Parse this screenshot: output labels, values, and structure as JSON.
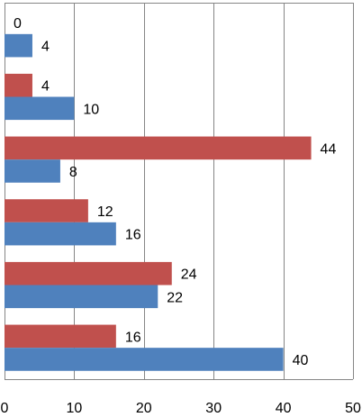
{
  "chart_data": {
    "type": "bar",
    "orientation": "horizontal",
    "categories": [
      "",
      "",
      "",
      "",
      "",
      ""
    ],
    "series": [
      {
        "values": [
          0,
          4,
          44,
          12,
          24,
          16
        ],
        "color": "#c0504d"
      },
      {
        "values": [
          4,
          10,
          8,
          16,
          22,
          40
        ],
        "color": "#4f81bd"
      }
    ],
    "xlim": [
      0,
      50
    ],
    "xticks": [
      0,
      10,
      20,
      30,
      40,
      50
    ],
    "xtick_labels": [
      "0",
      "10",
      "20",
      "30",
      "40",
      "50"
    ],
    "data_labels": {
      "red": [
        "0",
        "4",
        "44",
        "12",
        "24",
        "16"
      ],
      "blue": [
        "4",
        "10",
        "8",
        "16",
        "22",
        "40"
      ]
    },
    "grid": "vertical",
    "legend": "none",
    "title": "",
    "xlabel": "",
    "ylabel": ""
  },
  "colors": {
    "gridline": "#868686",
    "border": "#868686"
  }
}
